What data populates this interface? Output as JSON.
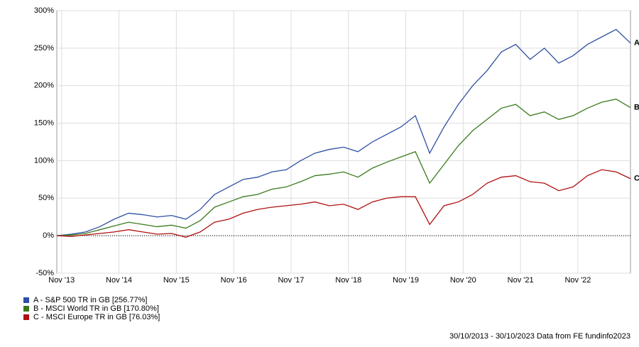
{
  "chart_data": {
    "type": "line",
    "x": [
      "2013-10",
      "2014-01",
      "2014-04",
      "2014-07",
      "2014-10",
      "2015-01",
      "2015-04",
      "2015-07",
      "2015-10",
      "2016-01",
      "2016-04",
      "2016-07",
      "2016-10",
      "2017-01",
      "2017-04",
      "2017-07",
      "2017-10",
      "2018-01",
      "2018-04",
      "2018-07",
      "2018-10",
      "2019-01",
      "2019-04",
      "2019-07",
      "2019-10",
      "2020-01",
      "2020-04",
      "2020-07",
      "2020-10",
      "2021-01",
      "2021-04",
      "2021-07",
      "2021-10",
      "2022-01",
      "2022-04",
      "2022-07",
      "2022-10",
      "2023-01",
      "2023-04",
      "2023-07",
      "2023-10"
    ],
    "series": [
      {
        "name": "A - S&P 500 TR in GB [256.77%]",
        "end_label": "A",
        "color": "#2e4fa3",
        "values": [
          0,
          2,
          5,
          12,
          22,
          30,
          28,
          25,
          27,
          22,
          35,
          55,
          65,
          75,
          78,
          85,
          88,
          100,
          110,
          115,
          118,
          112,
          125,
          135,
          145,
          160,
          110,
          145,
          175,
          200,
          220,
          245,
          255,
          235,
          250,
          230,
          240,
          255,
          265,
          275,
          256.77
        ]
      },
      {
        "name": "B - MSCI World TR in GB [170.80%]",
        "end_label": "B",
        "color": "#3a7a1e",
        "values": [
          0,
          1,
          3,
          8,
          13,
          18,
          15,
          12,
          14,
          10,
          20,
          38,
          45,
          52,
          55,
          62,
          65,
          72,
          80,
          82,
          85,
          78,
          90,
          98,
          105,
          112,
          70,
          95,
          120,
          140,
          155,
          170,
          175,
          160,
          165,
          155,
          160,
          170,
          178,
          182,
          170.8
        ]
      },
      {
        "name": "C - MSCI Europe TR in GB [76.03%]",
        "end_label": "C",
        "color": "#b01010",
        "values": [
          0,
          -1,
          1,
          3,
          5,
          8,
          5,
          2,
          3,
          -2,
          5,
          18,
          22,
          30,
          35,
          38,
          40,
          42,
          45,
          40,
          42,
          35,
          45,
          50,
          52,
          52,
          15,
          40,
          45,
          55,
          70,
          78,
          80,
          72,
          70,
          60,
          65,
          80,
          88,
          85,
          76.03
        ]
      }
    ],
    "xticks": [
      {
        "value": "2013-11",
        "label": "Nov '13"
      },
      {
        "value": "2014-11",
        "label": "Nov '14"
      },
      {
        "value": "2015-11",
        "label": "Nov '15"
      },
      {
        "value": "2016-11",
        "label": "Nov '16"
      },
      {
        "value": "2017-11",
        "label": "Nov '17"
      },
      {
        "value": "2018-11",
        "label": "Nov '18"
      },
      {
        "value": "2019-11",
        "label": "Nov '19"
      },
      {
        "value": "2020-11",
        "label": "Nov '20"
      },
      {
        "value": "2021-11",
        "label": "Nov '21"
      },
      {
        "value": "2022-11",
        "label": "Nov '22"
      }
    ],
    "xlim": [
      "2013-10",
      "2023-10"
    ],
    "ylim": [
      -50,
      300
    ],
    "yticks": [
      {
        "value": -50,
        "label": "-50%"
      },
      {
        "value": 0,
        "label": "0%"
      },
      {
        "value": 50,
        "label": "50%"
      },
      {
        "value": 100,
        "label": "100%"
      },
      {
        "value": 150,
        "label": "150%"
      },
      {
        "value": 200,
        "label": "200%"
      },
      {
        "value": 250,
        "label": "250%"
      },
      {
        "value": 300,
        "label": "300%"
      }
    ],
    "grid": true,
    "footer": "30/10/2013 - 30/10/2023 Data from FE fundinfo2023"
  }
}
